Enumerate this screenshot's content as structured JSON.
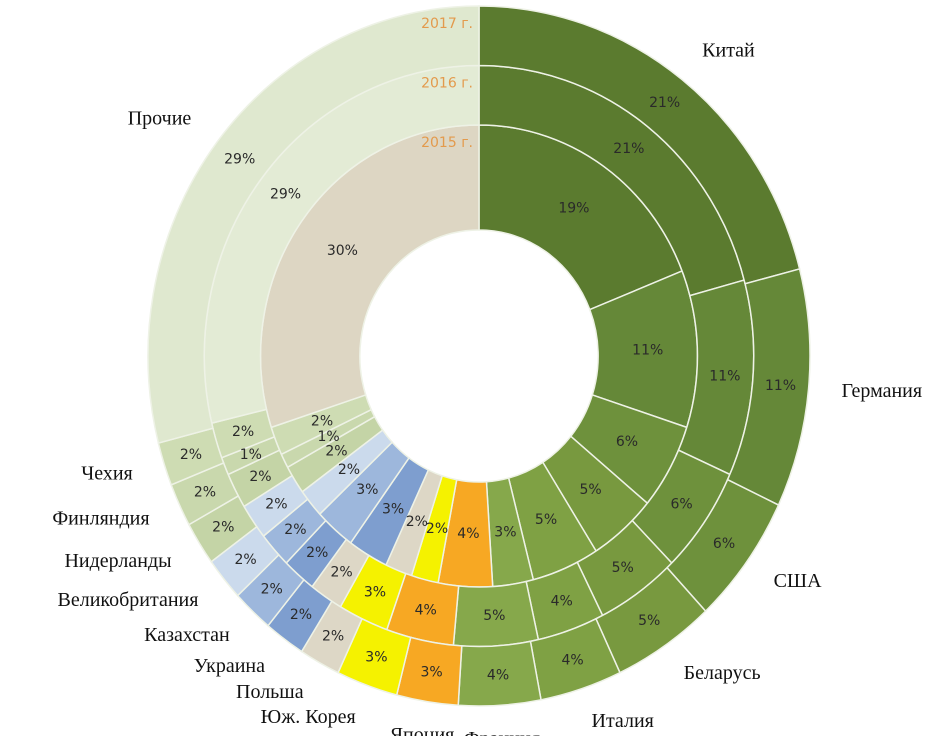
{
  "chart_data": {
    "type": "donut",
    "categories": [
      "Китай",
      "Германия",
      "США",
      "Беларусь",
      "Италия",
      "Франция",
      "Япония",
      "Юж. Корея",
      "Польша",
      "Украина",
      "Казахстан",
      "Великобритания",
      "Нидерланды",
      "Финляндия",
      "Чехия",
      "Прочие"
    ],
    "series_label_color": "#e39a4c",
    "series": [
      {
        "name": "2015 г.",
        "values": [
          19,
          11,
          6,
          5,
          5,
          3,
          4,
          2,
          2,
          3,
          3,
          2,
          2,
          1,
          2,
          30
        ],
        "value_labels": [
          "19%",
          "11%",
          "6%",
          "5%",
          "5%",
          "3%",
          "4%",
          "2%",
          "2%",
          "3%",
          "3%",
          "2%",
          "2%",
          "1%",
          "2%",
          "30%"
        ],
        "colors": [
          "#5b7b2f",
          "#658838",
          "#6e913c",
          "#78993f",
          "#7fa144",
          "#86a84b",
          "#f7a823",
          "#f5f200",
          "#ddd7c6",
          "#7e9ecf",
          "#9db7dc",
          "#cbdaec",
          "#c4d4a6",
          "#c9d8ad",
          "#cedcb3",
          "#ddd6c3"
        ]
      },
      {
        "name": "2016 г.",
        "values": [
          21,
          11,
          6,
          5,
          4,
          5,
          4,
          3,
          2,
          2,
          2,
          2,
          2,
          1,
          2,
          29
        ],
        "value_labels": [
          "21%",
          "11%",
          "6%",
          "5%",
          "4%",
          "5%",
          "4%",
          "3%",
          "2%",
          "2%",
          "2%",
          "2%",
          "2%",
          "1%",
          "2%",
          "29%"
        ],
        "colors": [
          "#5b7b2f",
          "#658838",
          "#6e913c",
          "#78993f",
          "#7fa144",
          "#86a84b",
          "#f7a823",
          "#f5f200",
          "#ddd7c6",
          "#7e9ecf",
          "#9db7dc",
          "#cbdaec",
          "#c4d4a6",
          "#c9d8ad",
          "#cedcb3",
          "#e3ebd5"
        ]
      },
      {
        "name": "2017 г.",
        "values": [
          21,
          11,
          6,
          5,
          4,
          4,
          3,
          3,
          2,
          2,
          2,
          2,
          2,
          2,
          2,
          29
        ],
        "value_labels": [
          "21%",
          "11%",
          "6%",
          "5%",
          "4%",
          "4%",
          "3%",
          "3%",
          "2%",
          "2%",
          "2%",
          "2%",
          "2%",
          "2%",
          "2%",
          "29%"
        ],
        "colors": [
          "#5b7b2f",
          "#658838",
          "#6e913c",
          "#78993f",
          "#7fa144",
          "#86a84b",
          "#f7a823",
          "#f5f200",
          "#ddd7c6",
          "#7e9ecf",
          "#9db7dc",
          "#cbdaec",
          "#c4d4a6",
          "#c9d8ad",
          "#cedcb3",
          "#dfe8cf"
        ]
      }
    ]
  }
}
